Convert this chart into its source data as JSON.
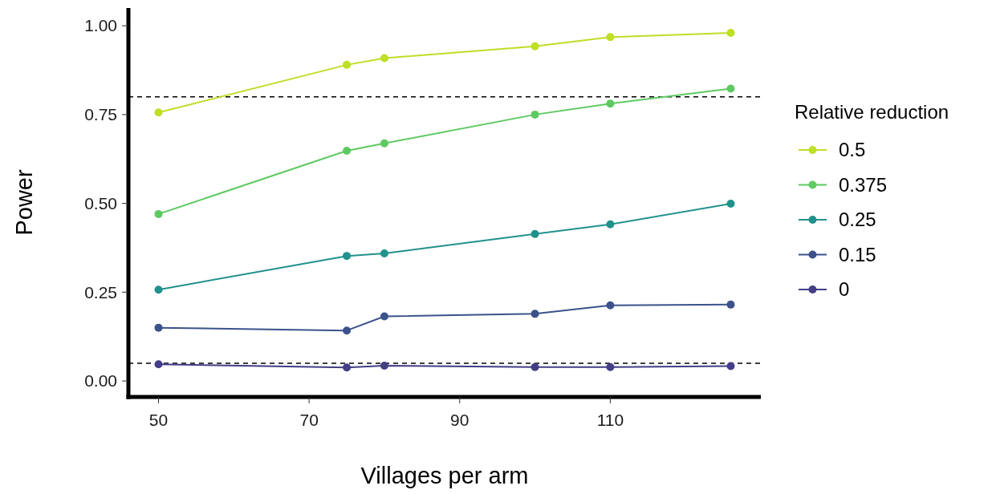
{
  "chart_data": {
    "type": "line",
    "xlabel": "Villages per arm",
    "ylabel": "Power",
    "legend_title": "Relative reduction",
    "legend": "right",
    "marker": "circle",
    "line_style": "solid",
    "grid": false,
    "x": [
      50,
      75,
      80,
      100,
      110,
      126
    ],
    "xlim": [
      46,
      130
    ],
    "xticks": [
      50,
      70,
      90,
      110
    ],
    "ylim": [
      -0.045,
      1.05
    ],
    "yticks": [
      {
        "value": 0,
        "label": "0.00"
      },
      {
        "value": 0.25,
        "label": "0.25"
      },
      {
        "value": 0.5,
        "label": "0.50"
      },
      {
        "value": 0.75,
        "label": "0.75"
      },
      {
        "value": 1,
        "label": "1.00"
      }
    ],
    "series": [
      {
        "name": "0.5",
        "color": "#bddf26",
        "values": [
          0.756,
          0.89,
          0.909,
          0.942,
          0.968,
          0.98
        ]
      },
      {
        "name": "0.375",
        "color": "#5ec962",
        "values": [
          0.47,
          0.648,
          0.669,
          0.75,
          0.781,
          0.823
        ]
      },
      {
        "name": "0.25",
        "color": "#21918c",
        "values": [
          0.257,
          0.352,
          0.359,
          0.414,
          0.441,
          0.499
        ]
      },
      {
        "name": "0.15",
        "color": "#3b528b",
        "values": [
          0.15,
          0.142,
          0.182,
          0.189,
          0.213,
          0.215
        ]
      },
      {
        "name": "0",
        "color": "#433e85",
        "values": [
          0.047,
          0.038,
          0.043,
          0.039,
          0.039,
          0.042
        ]
      }
    ],
    "ref_lines": [
      {
        "axis": "y",
        "value": 0.8,
        "line_style": "dashed",
        "color": "#000000"
      },
      {
        "axis": "y",
        "value": 0.05,
        "line_style": "dashed",
        "color": "#000000"
      }
    ]
  }
}
